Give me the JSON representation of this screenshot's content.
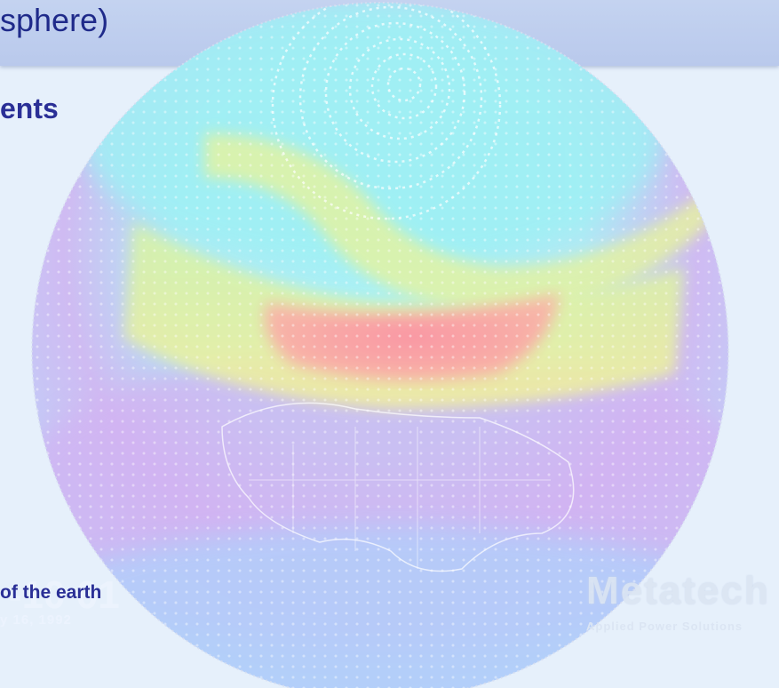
{
  "slide": {
    "title_fragment": "sphere)",
    "heading_fragment": "ents",
    "caption_fragment": "of the earth"
  },
  "background_overlay": {
    "digits_fragment": "-10 01",
    "date_fragment": "y 16, 1992"
  },
  "logo": {
    "name": "Metatech",
    "tagline": "Applied Power Solutions"
  },
  "colors": {
    "title_bar": "#bccbee",
    "text_primary": "#2a2f96",
    "background": "#e6f0fb",
    "globe_cyan": "#9ff2f6",
    "globe_yellow": "#f6f29a",
    "globe_red": "#fb9aa8",
    "globe_violet": "#d4b4f4",
    "globe_blue": "#b4d0fb"
  }
}
